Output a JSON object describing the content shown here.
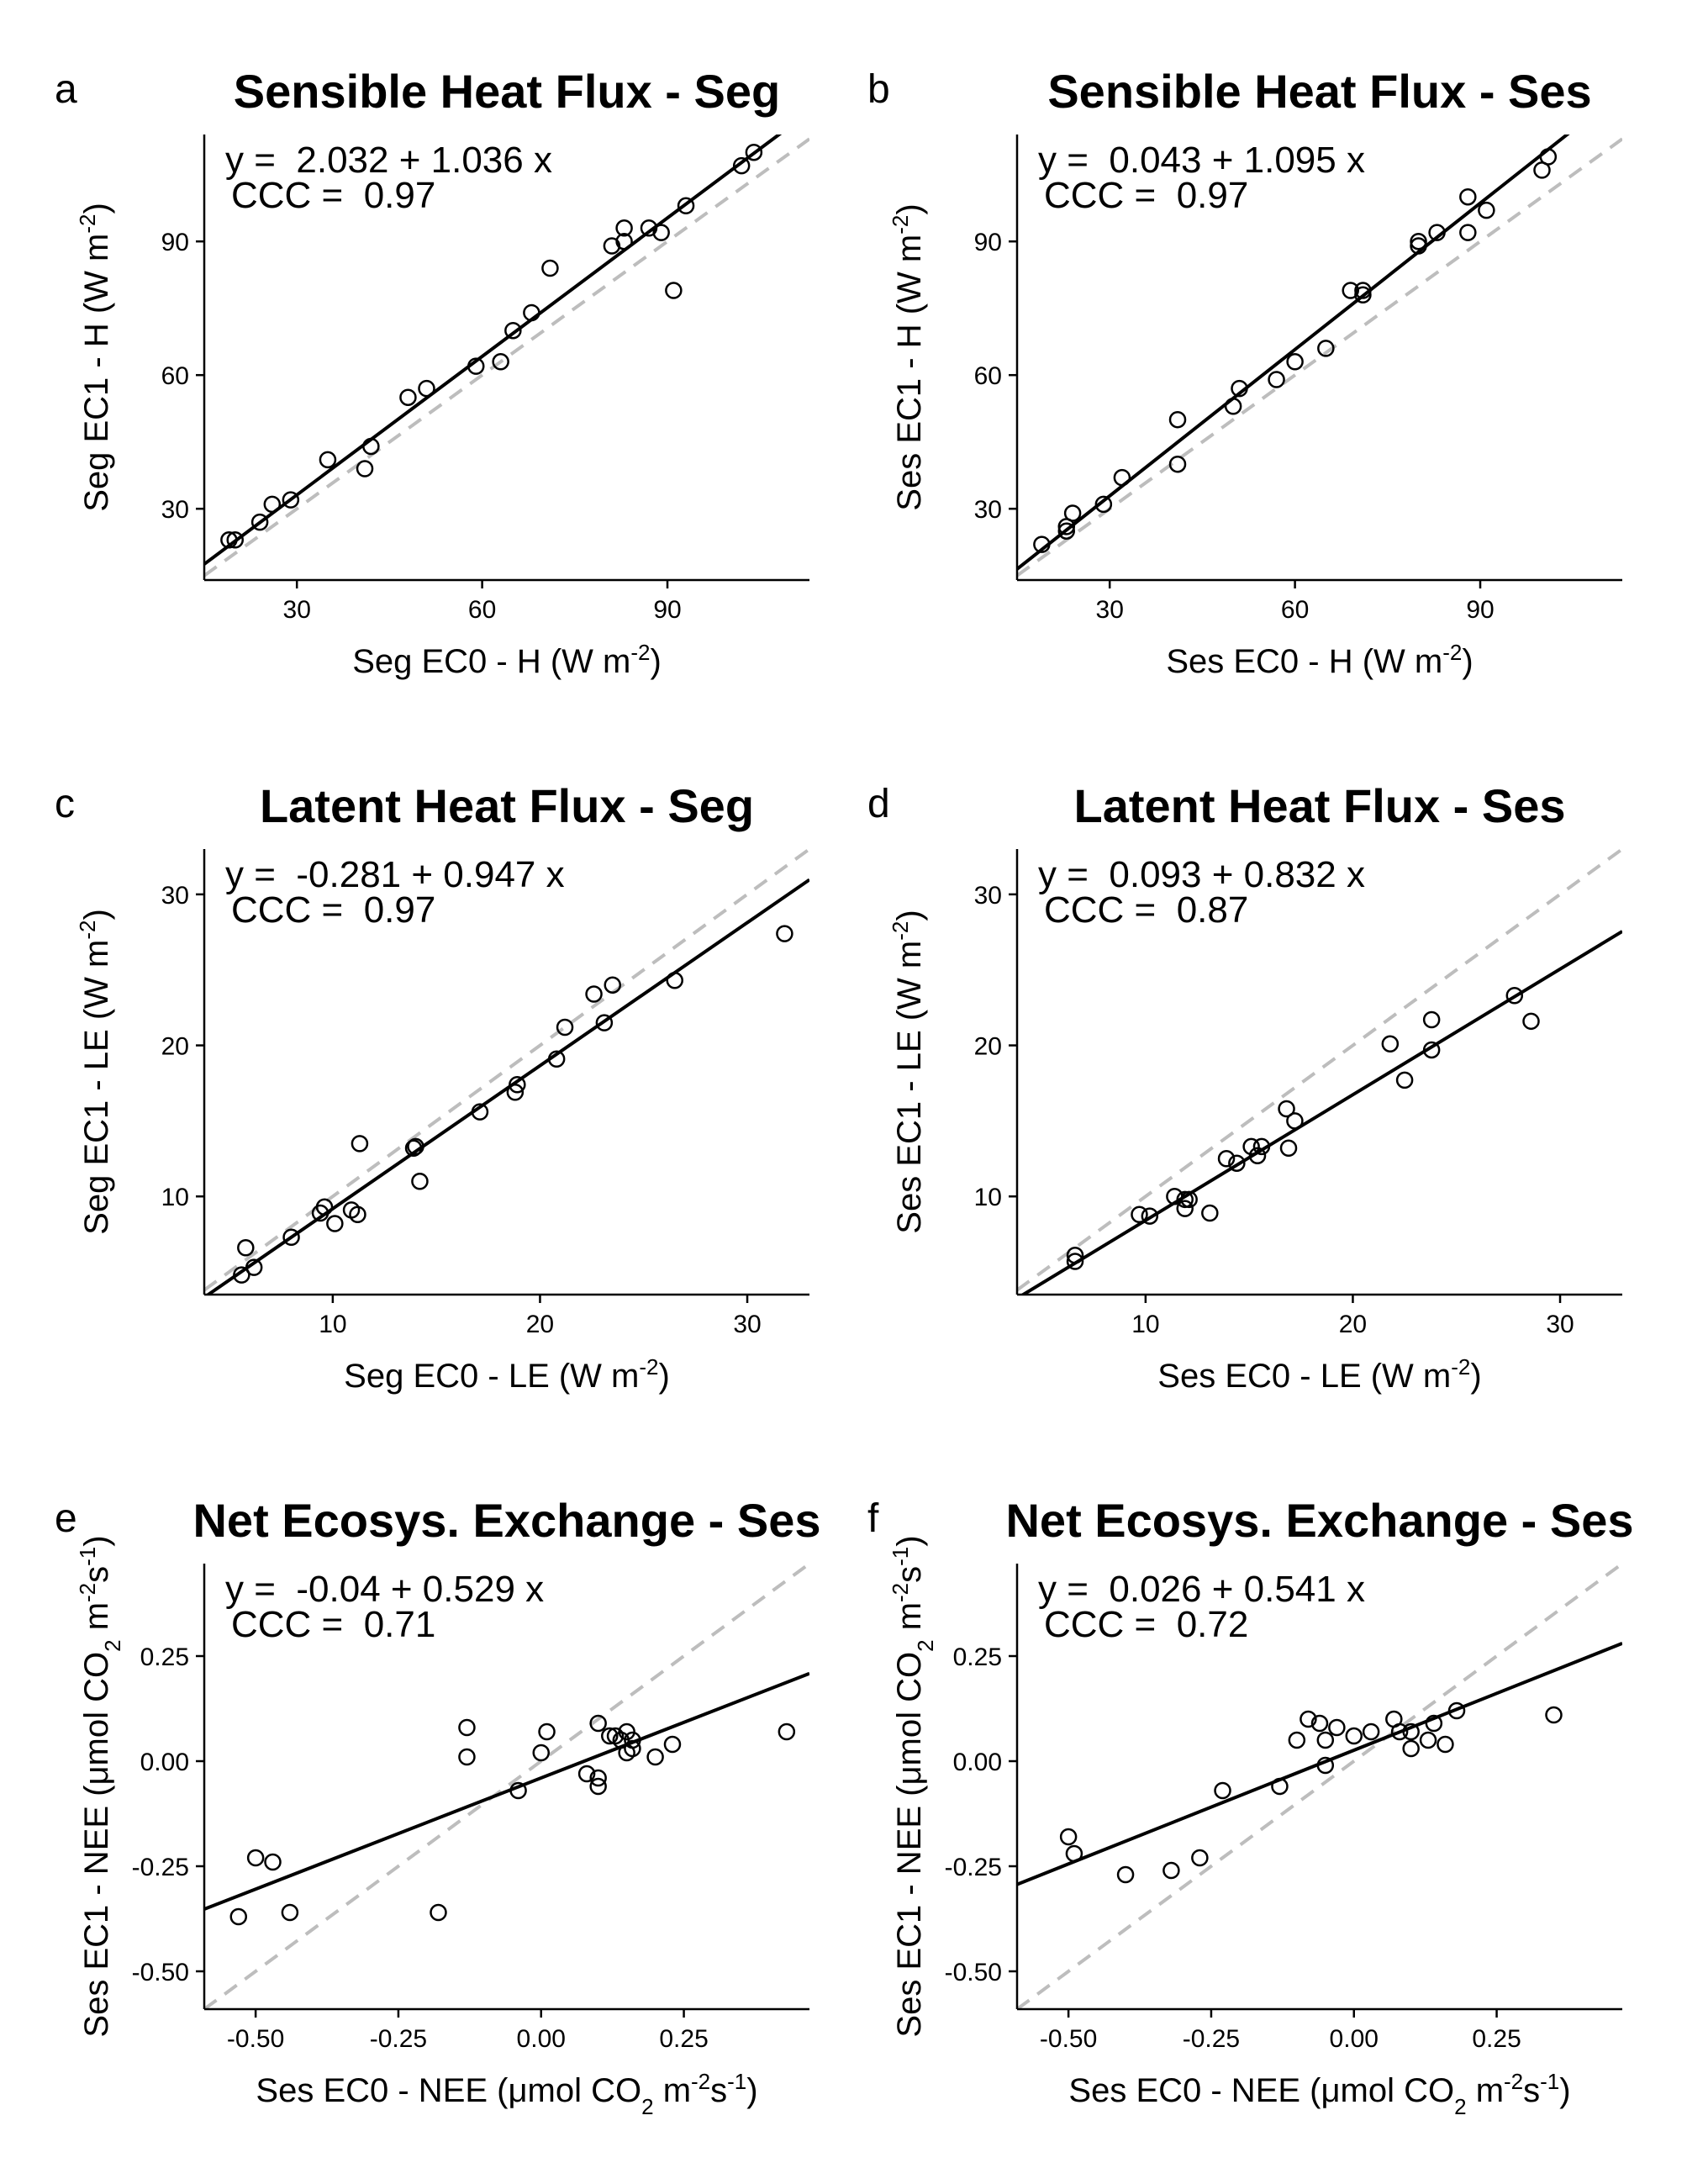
{
  "chart_data": [
    {
      "type": "scatter",
      "panel": "a",
      "title": "Sensible Heat Flux - Seg",
      "xlabel": "Seg EC0 - H (W m-2)",
      "ylabel": "Seg EC1 - H (W m-2)",
      "xlabel_parts": [
        "Seg EC0 - H (W m",
        "-2",
        ")"
      ],
      "ylabel_parts": [
        "Seg EC1 - H (W m",
        "-2",
        ")"
      ],
      "equation": "y =  2.032 + 1.036 x",
      "ccc": "CCC =  0.97",
      "xlim": [
        15,
        113
      ],
      "ylim": [
        14,
        114
      ],
      "xticks": [
        30,
        60,
        90
      ],
      "yticks": [
        30,
        60,
        90
      ],
      "tick_decimals": 0,
      "fit": {
        "intercept": 2.032,
        "slope": 1.036
      },
      "points": [
        [
          19,
          23
        ],
        [
          20,
          23
        ],
        [
          24,
          27
        ],
        [
          26,
          31
        ],
        [
          29,
          32
        ],
        [
          35,
          41
        ],
        [
          41,
          39
        ],
        [
          42,
          44
        ],
        [
          48,
          55
        ],
        [
          51,
          57
        ],
        [
          59,
          62
        ],
        [
          63,
          63
        ],
        [
          65,
          70
        ],
        [
          68,
          74
        ],
        [
          71,
          84
        ],
        [
          81,
          89
        ],
        [
          83,
          90
        ],
        [
          83,
          93
        ],
        [
          87,
          93
        ],
        [
          89,
          92
        ],
        [
          91,
          79
        ],
        [
          93,
          98
        ],
        [
          102,
          107
        ],
        [
          104,
          110
        ]
      ]
    },
    {
      "type": "scatter",
      "panel": "b",
      "title": "Sensible Heat Flux - Ses",
      "xlabel": "Ses EC0 - H (W m-2)",
      "ylabel": "Ses EC1 - H (W m-2)",
      "xlabel_parts": [
        "Ses EC0 - H (W m",
        "-2",
        ")"
      ],
      "ylabel_parts": [
        "Ses EC1 - H (W m",
        "-2",
        ")"
      ],
      "equation": "y =  0.043 + 1.095 x",
      "ccc": "CCC =  0.97",
      "xlim": [
        15,
        113
      ],
      "ylim": [
        14,
        114
      ],
      "xticks": [
        30,
        60,
        90
      ],
      "yticks": [
        30,
        60,
        90
      ],
      "tick_decimals": 0,
      "fit": {
        "intercept": 0.043,
        "slope": 1.095
      },
      "points": [
        [
          19,
          22
        ],
        [
          23,
          25
        ],
        [
          23,
          26
        ],
        [
          24,
          29
        ],
        [
          29,
          31
        ],
        [
          32,
          37
        ],
        [
          41,
          40
        ],
        [
          41,
          50
        ],
        [
          50,
          53
        ],
        [
          51,
          57
        ],
        [
          57,
          59
        ],
        [
          60,
          63
        ],
        [
          65,
          66
        ],
        [
          69,
          79
        ],
        [
          71,
          78
        ],
        [
          71,
          79
        ],
        [
          80,
          89
        ],
        [
          80,
          90
        ],
        [
          83,
          92
        ],
        [
          88,
          92
        ],
        [
          88,
          100
        ],
        [
          91,
          97
        ],
        [
          100,
          106
        ],
        [
          101,
          109
        ]
      ]
    },
    {
      "type": "scatter",
      "panel": "c",
      "title": "Latent Heat Flux - Seg",
      "xlabel": "Seg EC0 - LE (W m-2)",
      "ylabel": "Seg EC1 - LE (W m-2)",
      "xlabel_parts": [
        "Seg EC0 - LE (W m",
        "-2",
        ")"
      ],
      "ylabel_parts": [
        "Seg EC1 - LE (W m",
        "-2",
        ")"
      ],
      "equation": "y =  -0.281 + 0.947 x",
      "ccc": "CCC =  0.97",
      "xlim": [
        3.8,
        33
      ],
      "ylim": [
        3.5,
        33
      ],
      "xticks": [
        10,
        20,
        30
      ],
      "yticks": [
        10,
        20,
        30
      ],
      "tick_decimals": 0,
      "fit": {
        "intercept": -0.281,
        "slope": 0.947
      },
      "points": [
        [
          5.6,
          4.8
        ],
        [
          5.8,
          6.6
        ],
        [
          6.2,
          5.3
        ],
        [
          8,
          7.3
        ],
        [
          9.4,
          8.9
        ],
        [
          9.6,
          9.3
        ],
        [
          10.1,
          8.2
        ],
        [
          10.9,
          9.1
        ],
        [
          11.2,
          8.8
        ],
        [
          11.3,
          13.5
        ],
        [
          13.9,
          13.2
        ],
        [
          14,
          13.3
        ],
        [
          14.2,
          11
        ],
        [
          17.1,
          15.6
        ],
        [
          18.8,
          16.9
        ],
        [
          18.9,
          17.4
        ],
        [
          20.8,
          19.1
        ],
        [
          21.2,
          21.2
        ],
        [
          22.6,
          23.4
        ],
        [
          23.1,
          21.5
        ],
        [
          23.5,
          24
        ],
        [
          26.5,
          24.3
        ],
        [
          31.8,
          27.4
        ]
      ]
    },
    {
      "type": "scatter",
      "panel": "d",
      "title": "Latent Heat Flux - Ses",
      "xlabel": "Ses EC0 - LE (W m-2)",
      "ylabel": "Ses EC1 - LE (W m-2)",
      "xlabel_parts": [
        "Ses EC0 - LE (W m",
        "-2",
        ")"
      ],
      "ylabel_parts": [
        "Ses EC1 - LE (W m",
        "-2",
        ")"
      ],
      "equation": "y =  0.093 + 0.832 x",
      "ccc": "CCC =  0.87",
      "xlim": [
        3.8,
        33
      ],
      "ylim": [
        3.5,
        33
      ],
      "xticks": [
        10,
        20,
        30
      ],
      "yticks": [
        10,
        20,
        30
      ],
      "tick_decimals": 0,
      "fit": {
        "intercept": 0.093,
        "slope": 0.832
      },
      "points": [
        [
          6.6,
          5.7
        ],
        [
          6.6,
          6.1
        ],
        [
          9.7,
          8.8
        ],
        [
          10.2,
          8.7
        ],
        [
          11.4,
          10
        ],
        [
          11.9,
          9.8
        ],
        [
          11.9,
          9.2
        ],
        [
          12.1,
          9.8
        ],
        [
          13.1,
          8.9
        ],
        [
          13.9,
          12.5
        ],
        [
          14.4,
          12.2
        ],
        [
          15.1,
          13.3
        ],
        [
          15.4,
          12.7
        ],
        [
          15.6,
          13.3
        ],
        [
          16.8,
          15.8
        ],
        [
          16.9,
          13.2
        ],
        [
          17.2,
          15
        ],
        [
          21.8,
          20.1
        ],
        [
          22.5,
          17.7
        ],
        [
          23.8,
          21.7
        ],
        [
          23.8,
          19.7
        ],
        [
          27.8,
          23.3
        ],
        [
          28.6,
          21.6
        ]
      ]
    },
    {
      "type": "scatter",
      "panel": "e",
      "title": "Net Ecosys. Exchange - Ses",
      "xlabel": "Ses EC0 - NEE (μmol CO2 m-2s-1)",
      "ylabel": "Ses EC1 - NEE (μmol CO2 m-2s-1)",
      "equation": "y =  -0.04 + 0.529 x",
      "ccc": "CCC =  0.71",
      "xlim": [
        -0.59,
        0.47
      ],
      "ylim": [
        -0.59,
        0.47
      ],
      "xticks": [
        -0.5,
        -0.25,
        0,
        0.25
      ],
      "yticks": [
        -0.5,
        -0.25,
        0,
        0.25
      ],
      "tick_decimals": 2,
      "fit": {
        "intercept": -0.04,
        "slope": 0.529
      },
      "points": [
        [
          -0.53,
          -0.37
        ],
        [
          -0.5,
          -0.23
        ],
        [
          -0.47,
          -0.24
        ],
        [
          -0.44,
          -0.36
        ],
        [
          -0.18,
          -0.36
        ],
        [
          -0.13,
          0.08
        ],
        [
          -0.13,
          0.01
        ],
        [
          -0.04,
          -0.07
        ],
        [
          0,
          0.02
        ],
        [
          0.01,
          0.07
        ],
        [
          0.08,
          -0.03
        ],
        [
          0.1,
          0.09
        ],
        [
          0.1,
          -0.04
        ],
        [
          0.1,
          -0.06
        ],
        [
          0.12,
          0.06
        ],
        [
          0.13,
          0.06
        ],
        [
          0.14,
          0.05
        ],
        [
          0.15,
          0.07
        ],
        [
          0.15,
          0.02
        ],
        [
          0.16,
          0.05
        ],
        [
          0.16,
          0.03
        ],
        [
          0.2,
          0.01
        ],
        [
          0.23,
          0.04
        ],
        [
          0.43,
          0.07
        ]
      ]
    },
    {
      "type": "scatter",
      "panel": "f",
      "title": "Net Ecosys. Exchange - Ses",
      "xlabel": "Ses EC0 - NEE (μmol CO2 m-2s-1)",
      "ylabel": "Ses EC1 - NEE (μmol CO2 m-2s-1)",
      "equation": "y =  0.026 + 0.541 x",
      "ccc": "CCC =  0.72",
      "xlim": [
        -0.59,
        0.47
      ],
      "ylim": [
        -0.59,
        0.47
      ],
      "xticks": [
        -0.5,
        -0.25,
        0,
        0.25
      ],
      "yticks": [
        -0.5,
        -0.25,
        0,
        0.25
      ],
      "tick_decimals": 2,
      "fit": {
        "intercept": 0.026,
        "slope": 0.541
      },
      "points": [
        [
          -0.5,
          -0.18
        ],
        [
          -0.49,
          -0.22
        ],
        [
          -0.4,
          -0.27
        ],
        [
          -0.32,
          -0.26
        ],
        [
          -0.27,
          -0.23
        ],
        [
          -0.23,
          -0.07
        ],
        [
          -0.13,
          -0.06
        ],
        [
          -0.1,
          0.05
        ],
        [
          -0.08,
          0.1
        ],
        [
          -0.06,
          0.09
        ],
        [
          -0.05,
          -0.01
        ],
        [
          -0.05,
          0.05
        ],
        [
          -0.03,
          0.08
        ],
        [
          0,
          0.06
        ],
        [
          0.03,
          0.07
        ],
        [
          0.07,
          0.1
        ],
        [
          0.08,
          0.07
        ],
        [
          0.1,
          0.03
        ],
        [
          0.1,
          0.07
        ],
        [
          0.13,
          0.05
        ],
        [
          0.14,
          0.09
        ],
        [
          0.16,
          0.04
        ],
        [
          0.18,
          0.12
        ],
        [
          0.35,
          0.11
        ]
      ]
    }
  ],
  "labels": {
    "panel_letters": [
      "a",
      "b",
      "c",
      "d",
      "e",
      "f"
    ],
    "nee_xlabel_parts": [
      "Ses EC0 - NEE (",
      "μ",
      "mol CO",
      "2",
      " m",
      "-2",
      "s",
      "-1",
      ")"
    ],
    "nee_ylabel_parts": [
      "Ses EC1 - NEE (",
      "μ",
      "mol CO",
      "2",
      " m",
      "-2",
      "s",
      "-1",
      ")"
    ]
  },
  "colors": {
    "fit_line": "#000000",
    "identity_line": "#bdbdbd",
    "points": "#000000",
    "axes": "#000000"
  }
}
